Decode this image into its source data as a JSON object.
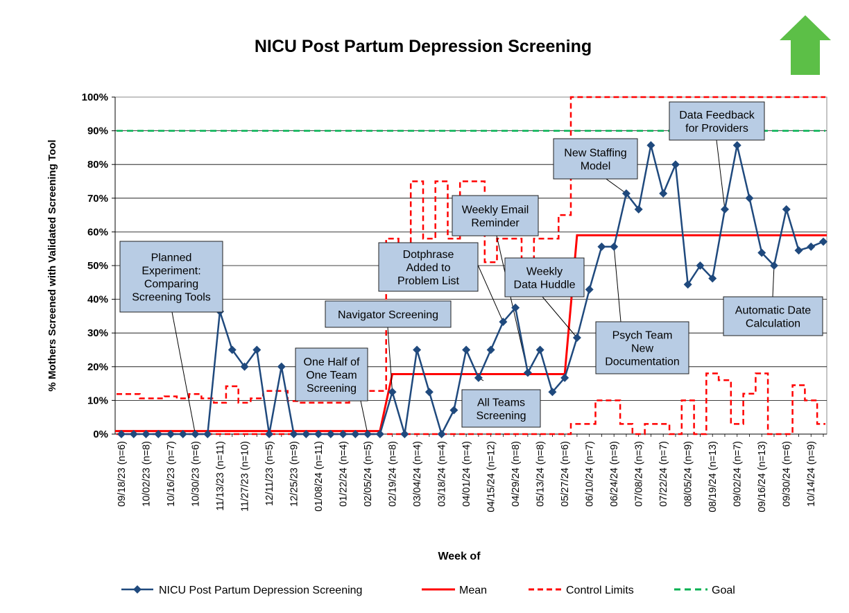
{
  "chart_data": {
    "type": "line",
    "title": "NICU Post Partum Depression Screening",
    "xlabel": "Week of",
    "ylabel": "% Mothers Screened with Validated Screening Tool",
    "ylim": [
      0,
      100
    ],
    "y_ticks": [
      "0%",
      "10%",
      "20%",
      "30%",
      "40%",
      "50%",
      "60%",
      "70%",
      "80%",
      "90%",
      "100%"
    ],
    "grid": true,
    "legend_position": "bottom",
    "improvement_arrow": "up",
    "colors": {
      "series": "#1f497d",
      "mean": "#ff0000",
      "limits": "#ff0000",
      "goal": "#00b050",
      "arrow": "#5cbf47",
      "annotation_fill": "#b8cce4"
    },
    "x_labels": [
      "09/18/23 (n=6)",
      "10/02/23 (n=8)",
      "10/16/23 (n=7)",
      "10/30/23 (n=6)",
      "11/13/23 (n=11)",
      "11/27/23 (n=10)",
      "12/11/23 (n=5)",
      "12/25/23 (n=9)",
      "01/08/24 (n=11)",
      "01/22/24 (n=4)",
      "02/05/24 (n=5)",
      "02/19/24 (n=8)",
      "03/04/24 (n=4)",
      "03/18/24 (n=4)",
      "04/01/24 (n=4)",
      "04/15/24 (n=12)",
      "04/29/24 (n=8)",
      "05/13/24 (n=8)",
      "05/27/24 (n=6)",
      "06/10/24 (n=7)",
      "06/24/24 (n=9)",
      "07/08/24 (n=3)",
      "07/22/24 (n=7)",
      "08/05/24 (n=9)",
      "08/19/24 (n=13)",
      "09/02/24 (n=7)",
      "09/16/24 (n=13)",
      "09/30/24 (n=6)",
      "10/14/24 (n=9)"
    ],
    "series": [
      {
        "name": "NICU Post Partum Depression Screening",
        "values": [
          0,
          0,
          0,
          0,
          0,
          0,
          0,
          0,
          36.4,
          25,
          20,
          25,
          0,
          20,
          0,
          0,
          0,
          0,
          0,
          0,
          0,
          0,
          12.5,
          0,
          25,
          12.5,
          0,
          7.1,
          25,
          16.7,
          25,
          33.3,
          37.5,
          18.2,
          25,
          12.5,
          16.7,
          28.6,
          42.9,
          55.6,
          55.6,
          71.4,
          66.7,
          85.7,
          71.4,
          80,
          44.4,
          50,
          46.2,
          66.7,
          85.7,
          70,
          53.8,
          50,
          66.7,
          54.5,
          55.6,
          57.1
        ]
      },
      {
        "name": "Mean",
        "values": [
          0.9,
          0.9,
          0.9,
          0.9,
          0.9,
          0.9,
          0.9,
          0.9,
          0.9,
          0.9,
          0.9,
          0.9,
          0.9,
          0.9,
          0.9,
          0.9,
          0.9,
          0.9,
          0.9,
          0.9,
          0.9,
          0.9,
          17.8,
          17.8,
          17.8,
          17.8,
          17.8,
          17.8,
          17.8,
          17.8,
          17.8,
          17.8,
          17.8,
          17.8,
          17.8,
          17.8,
          17.8,
          59,
          59,
          59,
          59,
          59,
          59,
          59,
          59,
          59,
          59,
          59,
          59,
          59,
          59,
          59,
          59,
          59,
          59,
          59,
          59,
          59
        ]
      },
      {
        "name": "Control Limits",
        "upper": [
          11.9,
          11.9,
          10.6,
          10.6,
          11.2,
          10.6,
          11.9,
          10.6,
          9.3,
          14.2,
          9.3,
          10.6,
          12.8,
          12.8,
          9.8,
          9.3,
          9.3,
          9.3,
          9.3,
          11.8,
          12.8,
          12.8,
          58,
          50,
          75,
          58,
          75,
          58,
          75,
          75,
          51,
          58,
          58,
          50,
          58,
          58,
          65,
          100,
          100,
          100,
          100,
          100,
          100,
          100,
          100,
          100,
          100,
          100,
          100,
          100,
          100,
          100,
          100,
          100,
          100,
          100,
          100,
          100
        ],
        "lower": [
          0,
          0,
          0,
          0,
          0,
          0,
          0,
          0,
          0,
          0,
          0,
          0,
          0,
          0,
          0,
          0,
          0,
          0,
          0,
          0,
          0,
          0,
          0,
          0,
          0,
          0,
          0,
          0,
          0,
          0,
          0,
          0,
          0,
          0,
          0,
          0,
          0,
          3,
          3,
          10,
          10,
          3,
          0,
          3,
          3,
          0,
          10,
          0,
          18,
          16,
          3,
          12,
          18,
          0,
          0,
          14.5,
          10,
          3
        ]
      },
      {
        "name": "Goal",
        "values": [
          90
        ]
      }
    ],
    "annotations": [
      {
        "lines": [
          "Planned",
          "Experiment:",
          "Comparing",
          "Screening Tools"
        ]
      },
      {
        "lines": [
          "One Half of",
          "One Team",
          "Screening"
        ]
      },
      {
        "lines": [
          "Navigator Screening"
        ]
      },
      {
        "lines": [
          "Dotphrase",
          "Added to",
          "Problem List"
        ]
      },
      {
        "lines": [
          "Weekly Email",
          "Reminder"
        ]
      },
      {
        "lines": [
          "All Teams",
          "Screening"
        ]
      },
      {
        "lines": [
          "Weekly",
          "Data Huddle"
        ]
      },
      {
        "lines": [
          "New Staffing",
          "Model"
        ]
      },
      {
        "lines": [
          "Psych Team",
          "New",
          "Documentation"
        ]
      },
      {
        "lines": [
          "Data Feedback",
          "for Providers"
        ]
      },
      {
        "lines": [
          "Automatic Date",
          "Calculation"
        ]
      }
    ]
  }
}
